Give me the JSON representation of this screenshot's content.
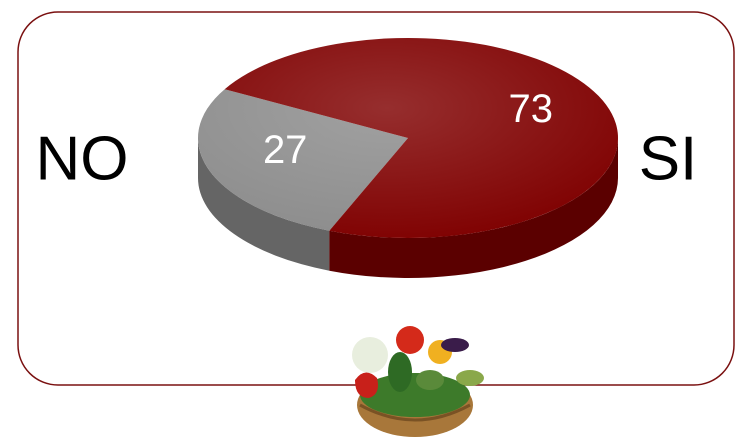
{
  "chart_data": {
    "type": "pie",
    "categories": [
      "NO",
      "SI"
    ],
    "values": [
      27,
      73
    ],
    "colors": [
      "#8c8c8c",
      "#7f0000"
    ]
  }
}
